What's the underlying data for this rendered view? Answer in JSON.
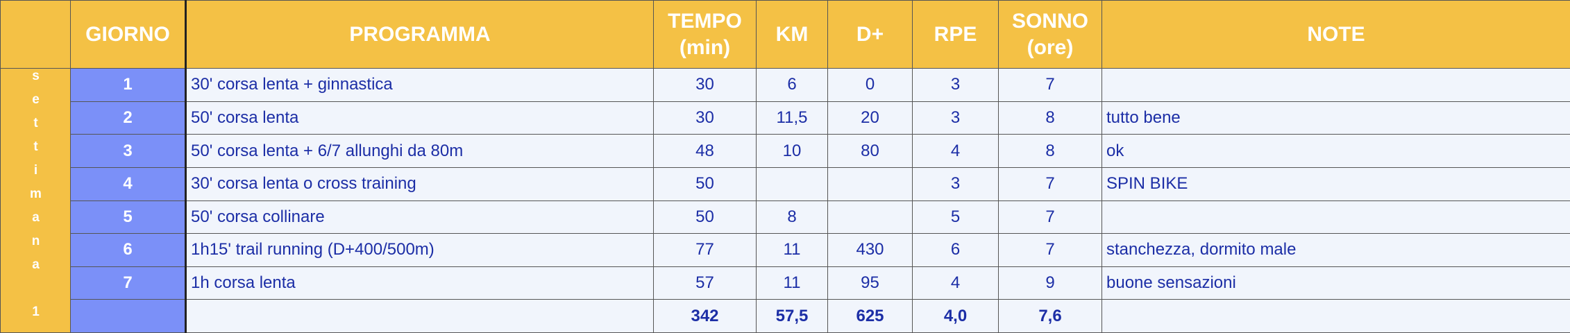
{
  "table": {
    "header": [
      "GIORNO",
      "PROGRAMMA",
      "TEMPO (min)",
      "KM",
      "D+",
      "RPE",
      "SONNO (ore)",
      "NOTE"
    ],
    "week_label": "settimana 1",
    "rows": [
      [
        "1",
        "30' corsa lenta + ginnastica",
        "30",
        "6",
        "0",
        "3",
        "7",
        null
      ],
      [
        "2",
        "50' corsa lenta",
        "30",
        "11,5",
        "20",
        "3",
        "8",
        "tutto bene"
      ],
      [
        "3",
        "50' corsa lenta + 6/7 allunghi da 80m",
        "48",
        "10",
        "80",
        "4",
        "8",
        "ok"
      ],
      [
        "4",
        "30' corsa lenta o cross training",
        "50",
        null,
        null,
        "3",
        "7",
        "SPIN BIKE"
      ],
      [
        "5",
        "50' corsa collinare",
        "50",
        "8",
        null,
        "5",
        "7",
        null
      ],
      [
        "6",
        "1h15' trail running (D+400/500m)",
        "77",
        "11",
        "430",
        "6",
        "7",
        "stanchezza, dormito male"
      ],
      [
        "7",
        "1h corsa lenta",
        "57",
        "11",
        "95",
        "4",
        "9",
        "buone sensazioni"
      ]
    ],
    "totals": [
      "342",
      "57,5",
      "625",
      "4,0",
      "7,6"
    ]
  }
}
